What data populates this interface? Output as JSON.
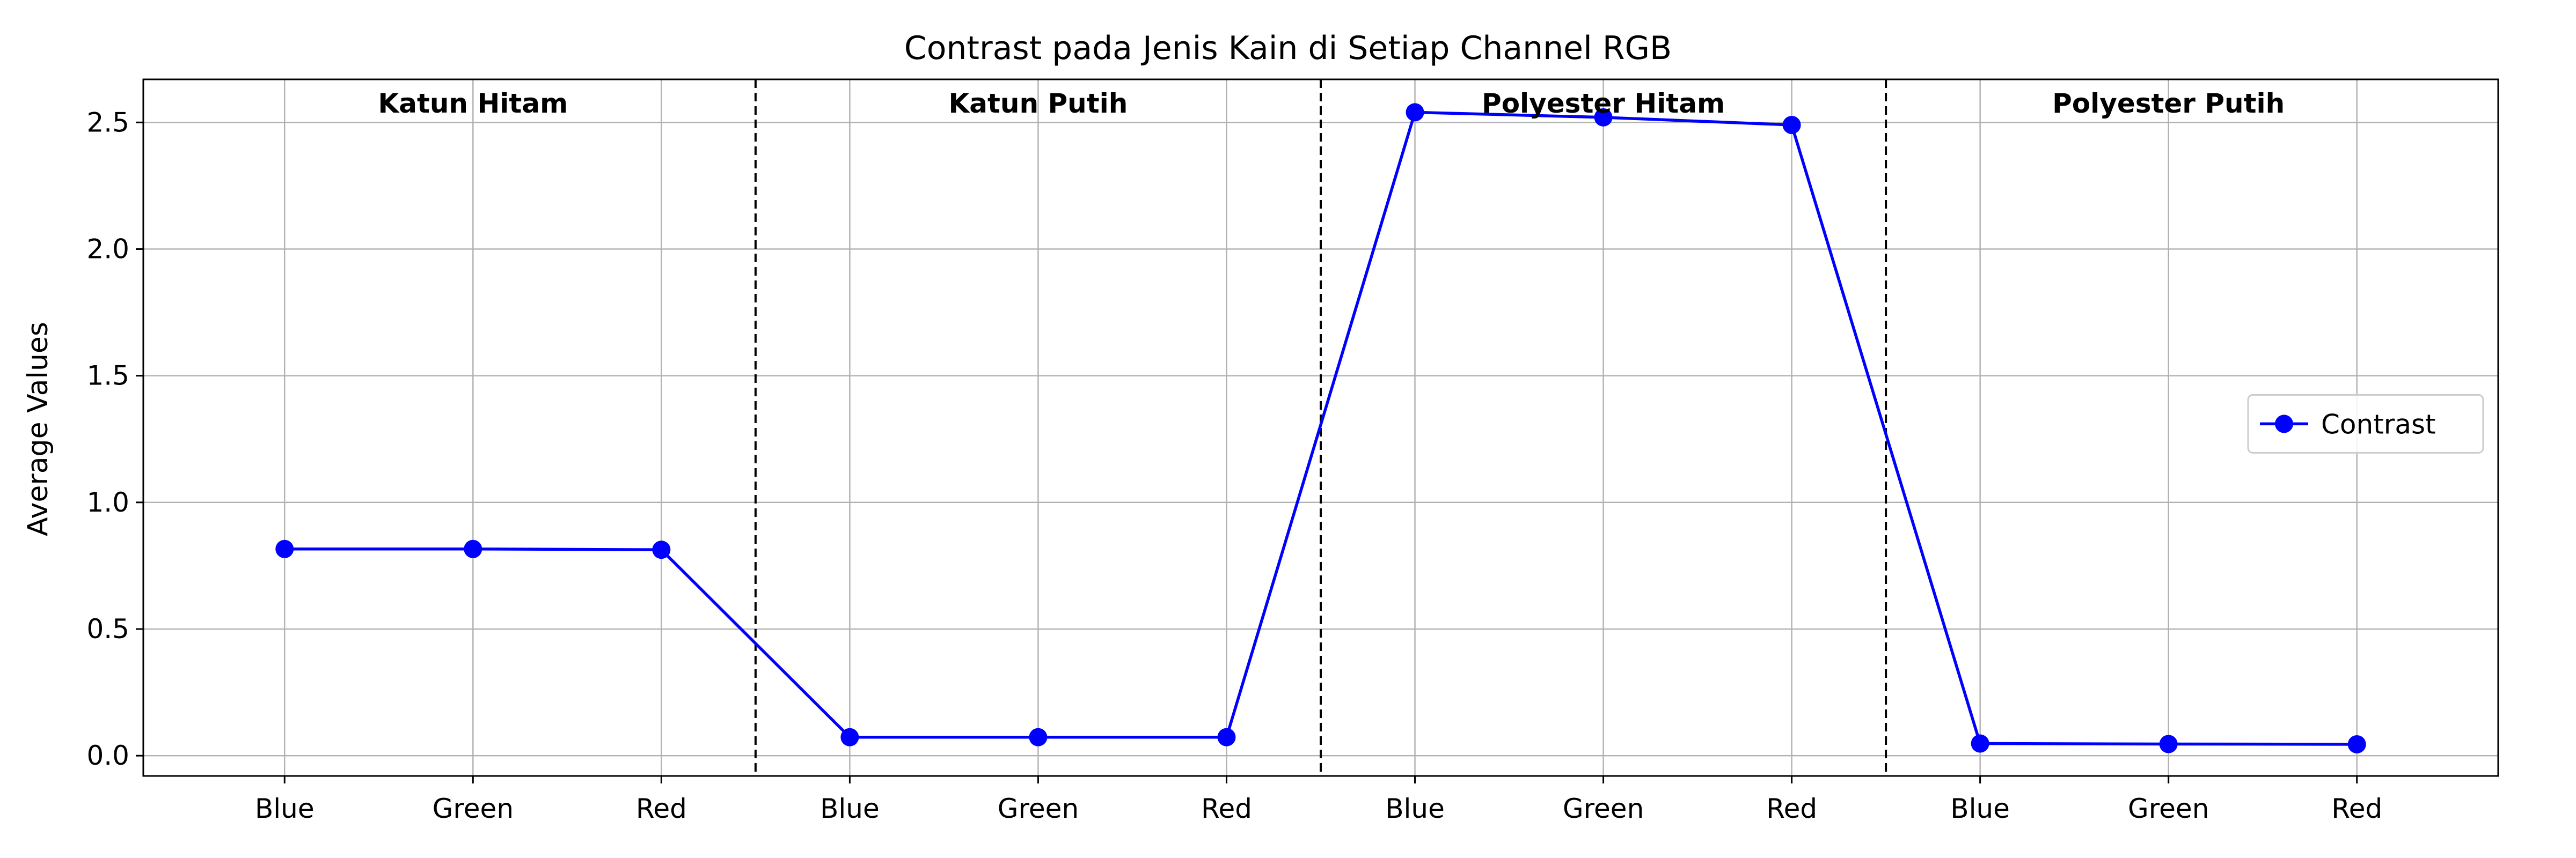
{
  "chart_data": {
    "type": "line",
    "title": "Contrast pada Jenis Kain di Setiap Channel RGB",
    "xlabel": "",
    "ylabel": "Average Values",
    "ylim": [
      -0.08,
      2.67
    ],
    "yticks": [
      "0.0",
      "0.5",
      "1.0",
      "1.5",
      "2.0",
      "2.5"
    ],
    "ytick_values": [
      0.0,
      0.5,
      1.0,
      1.5,
      2.0,
      2.5
    ],
    "categories": [
      "Blue",
      "Green",
      "Red",
      "Blue",
      "Green",
      "Red",
      "Blue",
      "Green",
      "Red",
      "Blue",
      "Green",
      "Red"
    ],
    "groups": [
      "Katun Hitam",
      "Katun Putih",
      "Polyester Hitam",
      "Polyester Putih"
    ],
    "series": [
      {
        "name": "Contrast",
        "color": "#0000ff",
        "values": [
          0.816,
          0.816,
          0.813,
          0.073,
          0.073,
          0.073,
          2.54,
          2.52,
          2.49,
          0.048,
          0.046,
          0.045
        ]
      }
    ],
    "grid": true,
    "legend_position": "center-right",
    "group_separator_style": "dashed"
  }
}
